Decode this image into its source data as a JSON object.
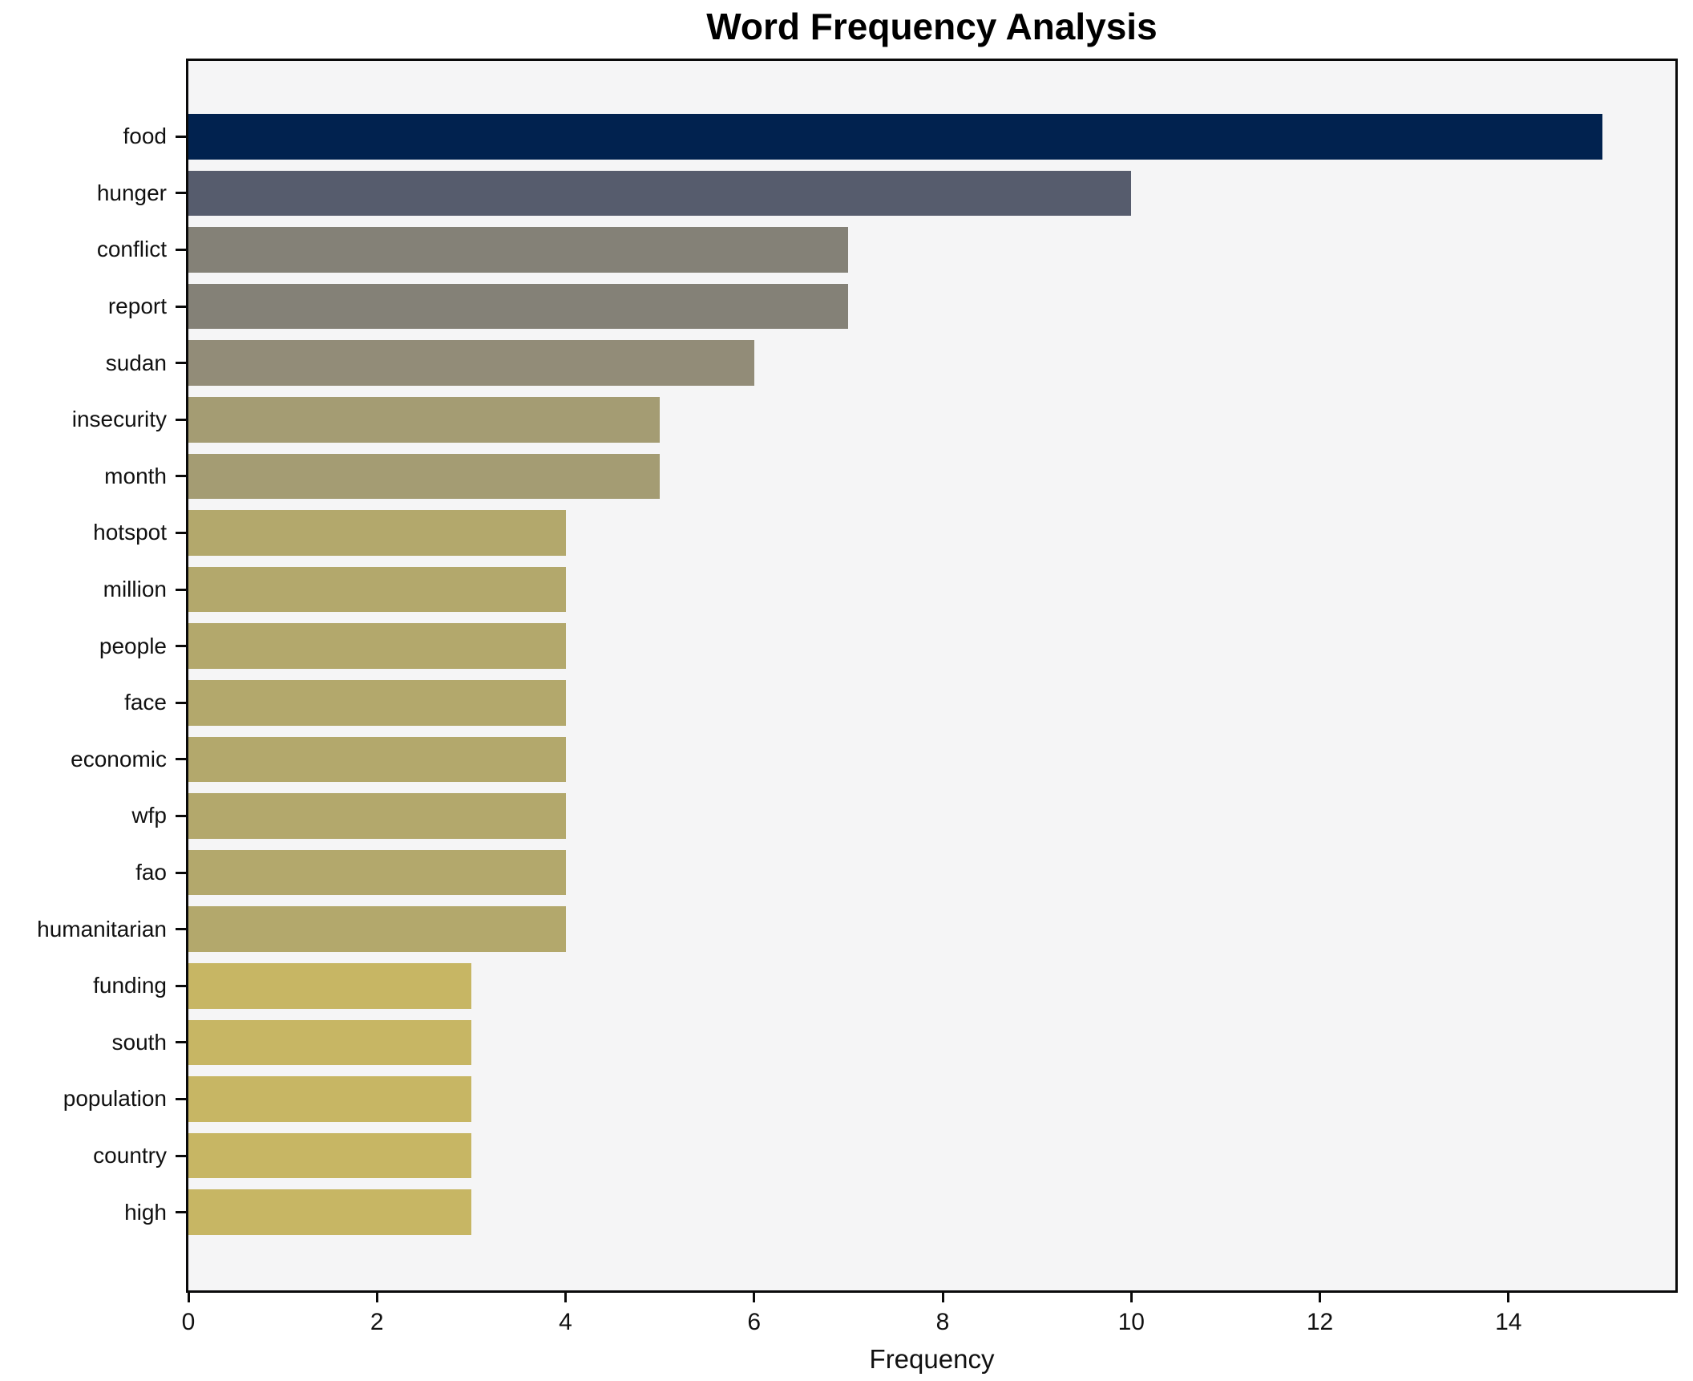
{
  "chart_data": {
    "type": "bar",
    "orientation": "horizontal",
    "title": "Word Frequency Analysis",
    "xlabel": "Frequency",
    "ylabel": "",
    "categories": [
      "food",
      "hunger",
      "conflict",
      "report",
      "sudan",
      "insecurity",
      "month",
      "hotspot",
      "million",
      "people",
      "face",
      "economic",
      "wfp",
      "fao",
      "humanitarian",
      "funding",
      "south",
      "population",
      "country",
      "high"
    ],
    "values": [
      15,
      10,
      7,
      7,
      6,
      5,
      5,
      4,
      4,
      4,
      4,
      4,
      4,
      4,
      4,
      3,
      3,
      3,
      3,
      3
    ],
    "bar_colors": [
      "#01224f",
      "#565c6d",
      "#848177",
      "#848177",
      "#928c78",
      "#a49c73",
      "#a49c73",
      "#b3a86c",
      "#b3a86c",
      "#b3a86c",
      "#b3a86c",
      "#b3a86c",
      "#b3a86c",
      "#b3a86c",
      "#b3a86c",
      "#c7b664",
      "#c7b664",
      "#c7b664",
      "#c7b664",
      "#c7b664"
    ],
    "x_ticks": [
      0,
      2,
      4,
      6,
      8,
      10,
      12,
      14
    ],
    "xlim": [
      0,
      15.77
    ],
    "grid": false,
    "legend": null,
    "colors": {
      "figure_background": "#ffffff",
      "plot_background": "#f5f5f6",
      "spine": "#0a0a0a",
      "text": "#111111"
    }
  }
}
